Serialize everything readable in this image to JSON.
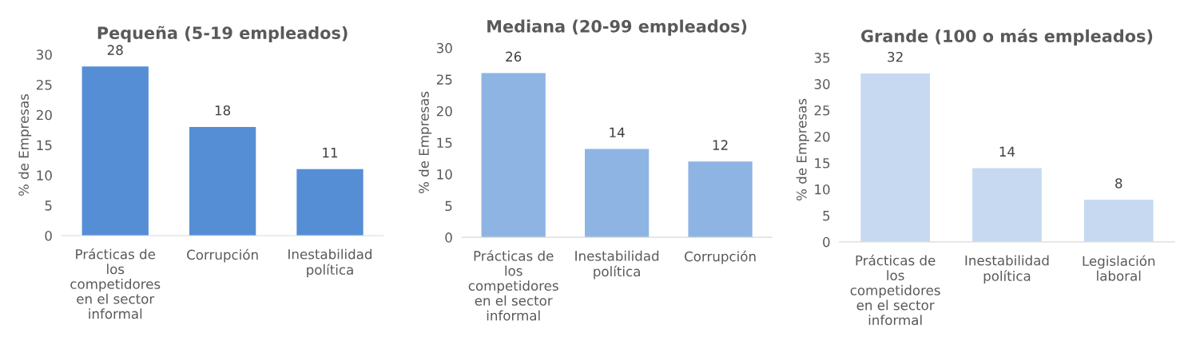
{
  "chart_data": [
    {
      "type": "bar",
      "title": "Pequeña (5-19 empleados)",
      "ylabel": "% de Empresas",
      "categories": [
        "Prácticas de los competidores en el sector informal",
        "Corrupción",
        "Inestabilidad política"
      ],
      "values": [
        28,
        18,
        11
      ],
      "color": "#558ed5",
      "ylim": [
        0,
        30
      ],
      "yticks": [
        0,
        5,
        10,
        15,
        20,
        25,
        30
      ],
      "data_labels": true
    },
    {
      "type": "bar",
      "title": "Mediana (20-99 empleados)",
      "ylabel": "% de Empresas",
      "categories": [
        "Prácticas de los competidores en el sector informal",
        "Inestabilidad política",
        "Corrupción"
      ],
      "values": [
        26,
        14,
        12
      ],
      "color": "#8eb4e3",
      "ylim": [
        0,
        30
      ],
      "yticks": [
        0,
        5,
        10,
        15,
        20,
        25,
        30
      ],
      "data_labels": true
    },
    {
      "type": "bar",
      "title": "Grande (100 o más empleados)",
      "ylabel": "% de Empresas",
      "categories": [
        "Prácticas de los competidores en el sector informal",
        "Inestabilidad política",
        "Legislación laboral"
      ],
      "values": [
        32,
        14,
        8
      ],
      "color": "#c6d9f1",
      "ylim": [
        0,
        35
      ],
      "yticks": [
        0,
        5,
        10,
        15,
        20,
        25,
        30,
        35
      ],
      "data_labels": true
    }
  ]
}
